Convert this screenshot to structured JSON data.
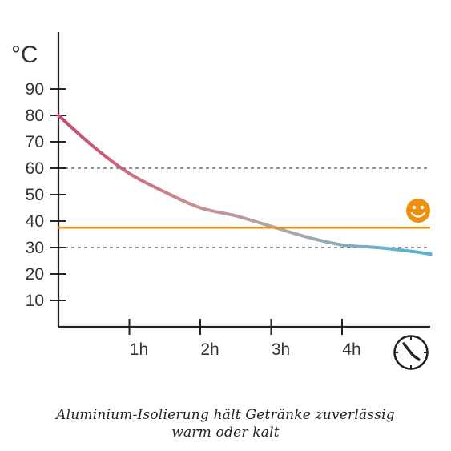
{
  "chart_data": {
    "type": "line",
    "y_unit": "°C",
    "y_ticks": [
      "10",
      "20",
      "30",
      "40",
      "50",
      "60",
      "70",
      "80",
      "90"
    ],
    "x_ticks": [
      "1h",
      "2h",
      "3h",
      "4h"
    ],
    "ylim": [
      0,
      100
    ],
    "xlim": [
      0,
      5.25
    ],
    "series": [
      {
        "x": [
          0,
          0.5,
          1.0,
          1.5,
          2.0,
          2.5,
          3.0,
          3.5,
          4.0,
          4.5,
          5.0,
          5.25
        ],
        "values": [
          80,
          68,
          58,
          51,
          45,
          42,
          38,
          34,
          31,
          30,
          28.5,
          27.5
        ],
        "color_start": "#c94a6a",
        "color_mid": "#b0a8aa",
        "color_end": "#4bb5d6"
      }
    ],
    "reference_lines": {
      "dashed_upper": 60,
      "dashed_lower": 30,
      "target": 37.5,
      "target_color": "#f0900a",
      "dashed_color": "#555555"
    },
    "grid": false
  },
  "icons": {
    "smiley": "smiley-face-icon",
    "smiley_color": "#f0900a",
    "clock": "clock-icon"
  },
  "caption": {
    "line1": "Aluminium-Isolierung hält Getränke zuverlässig",
    "line2": "warm oder kalt"
  }
}
